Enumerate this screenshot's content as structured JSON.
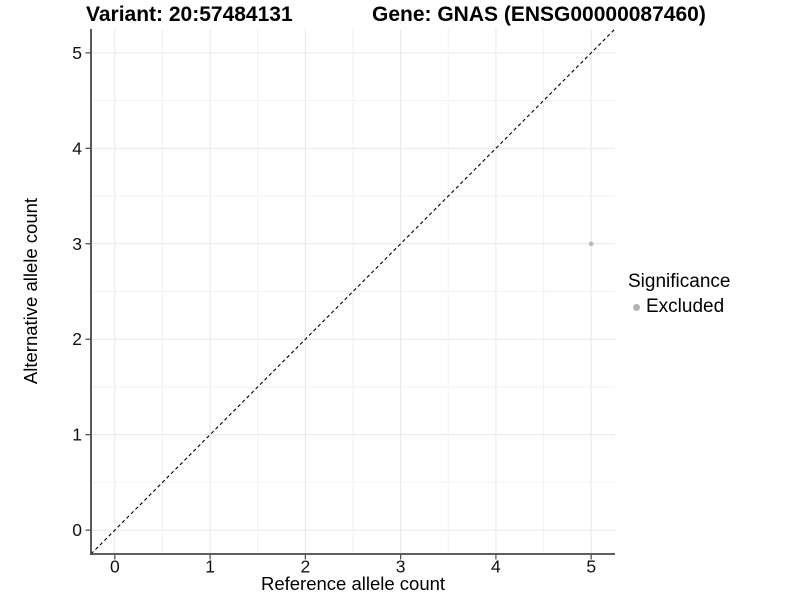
{
  "header": {
    "variant_title": "Variant: 20:57484131",
    "gene_title": "Gene: GNAS (ENSG00000087460)"
  },
  "chart_data": {
    "type": "scatter",
    "title": "Variant: 20:57484131   Gene: GNAS (ENSG00000087460)",
    "xlabel": "Reference allele count",
    "ylabel": "Alternative allele count",
    "xlim": [
      -0.25,
      5.25
    ],
    "ylim": [
      -0.25,
      5.25
    ],
    "x_ticks": [
      0,
      1,
      2,
      3,
      4,
      5
    ],
    "y_ticks": [
      0,
      1,
      2,
      3,
      4,
      5
    ],
    "minor_x": [
      0.5,
      1.5,
      2.5,
      3.5,
      4.5
    ],
    "minor_y": [
      0.5,
      1.5,
      2.5,
      3.5,
      4.5
    ],
    "grid": "major-and-minor",
    "series": [
      {
        "name": "Excluded",
        "marker": "circle",
        "color": "#bdbdbd",
        "points": [
          {
            "x": 5,
            "y": 3
          }
        ]
      }
    ],
    "identity_line": {
      "style": "dashed",
      "color": "#000000",
      "from": [
        -0.25,
        -0.25
      ],
      "to": [
        5.25,
        5.25
      ]
    },
    "legend": {
      "title": "Significance",
      "position": "right",
      "entries": [
        {
          "label": "Excluded",
          "marker": "circle",
          "color": "#b3b3b3"
        }
      ]
    },
    "colors": {
      "background": "#ffffff",
      "grid_major": "#e7e7e7",
      "grid_minor": "#f2f2f2",
      "axis_line": "#474747",
      "tick_mark": "#474747",
      "tick_label": "#111111",
      "point": "#bdbdbd"
    }
  }
}
